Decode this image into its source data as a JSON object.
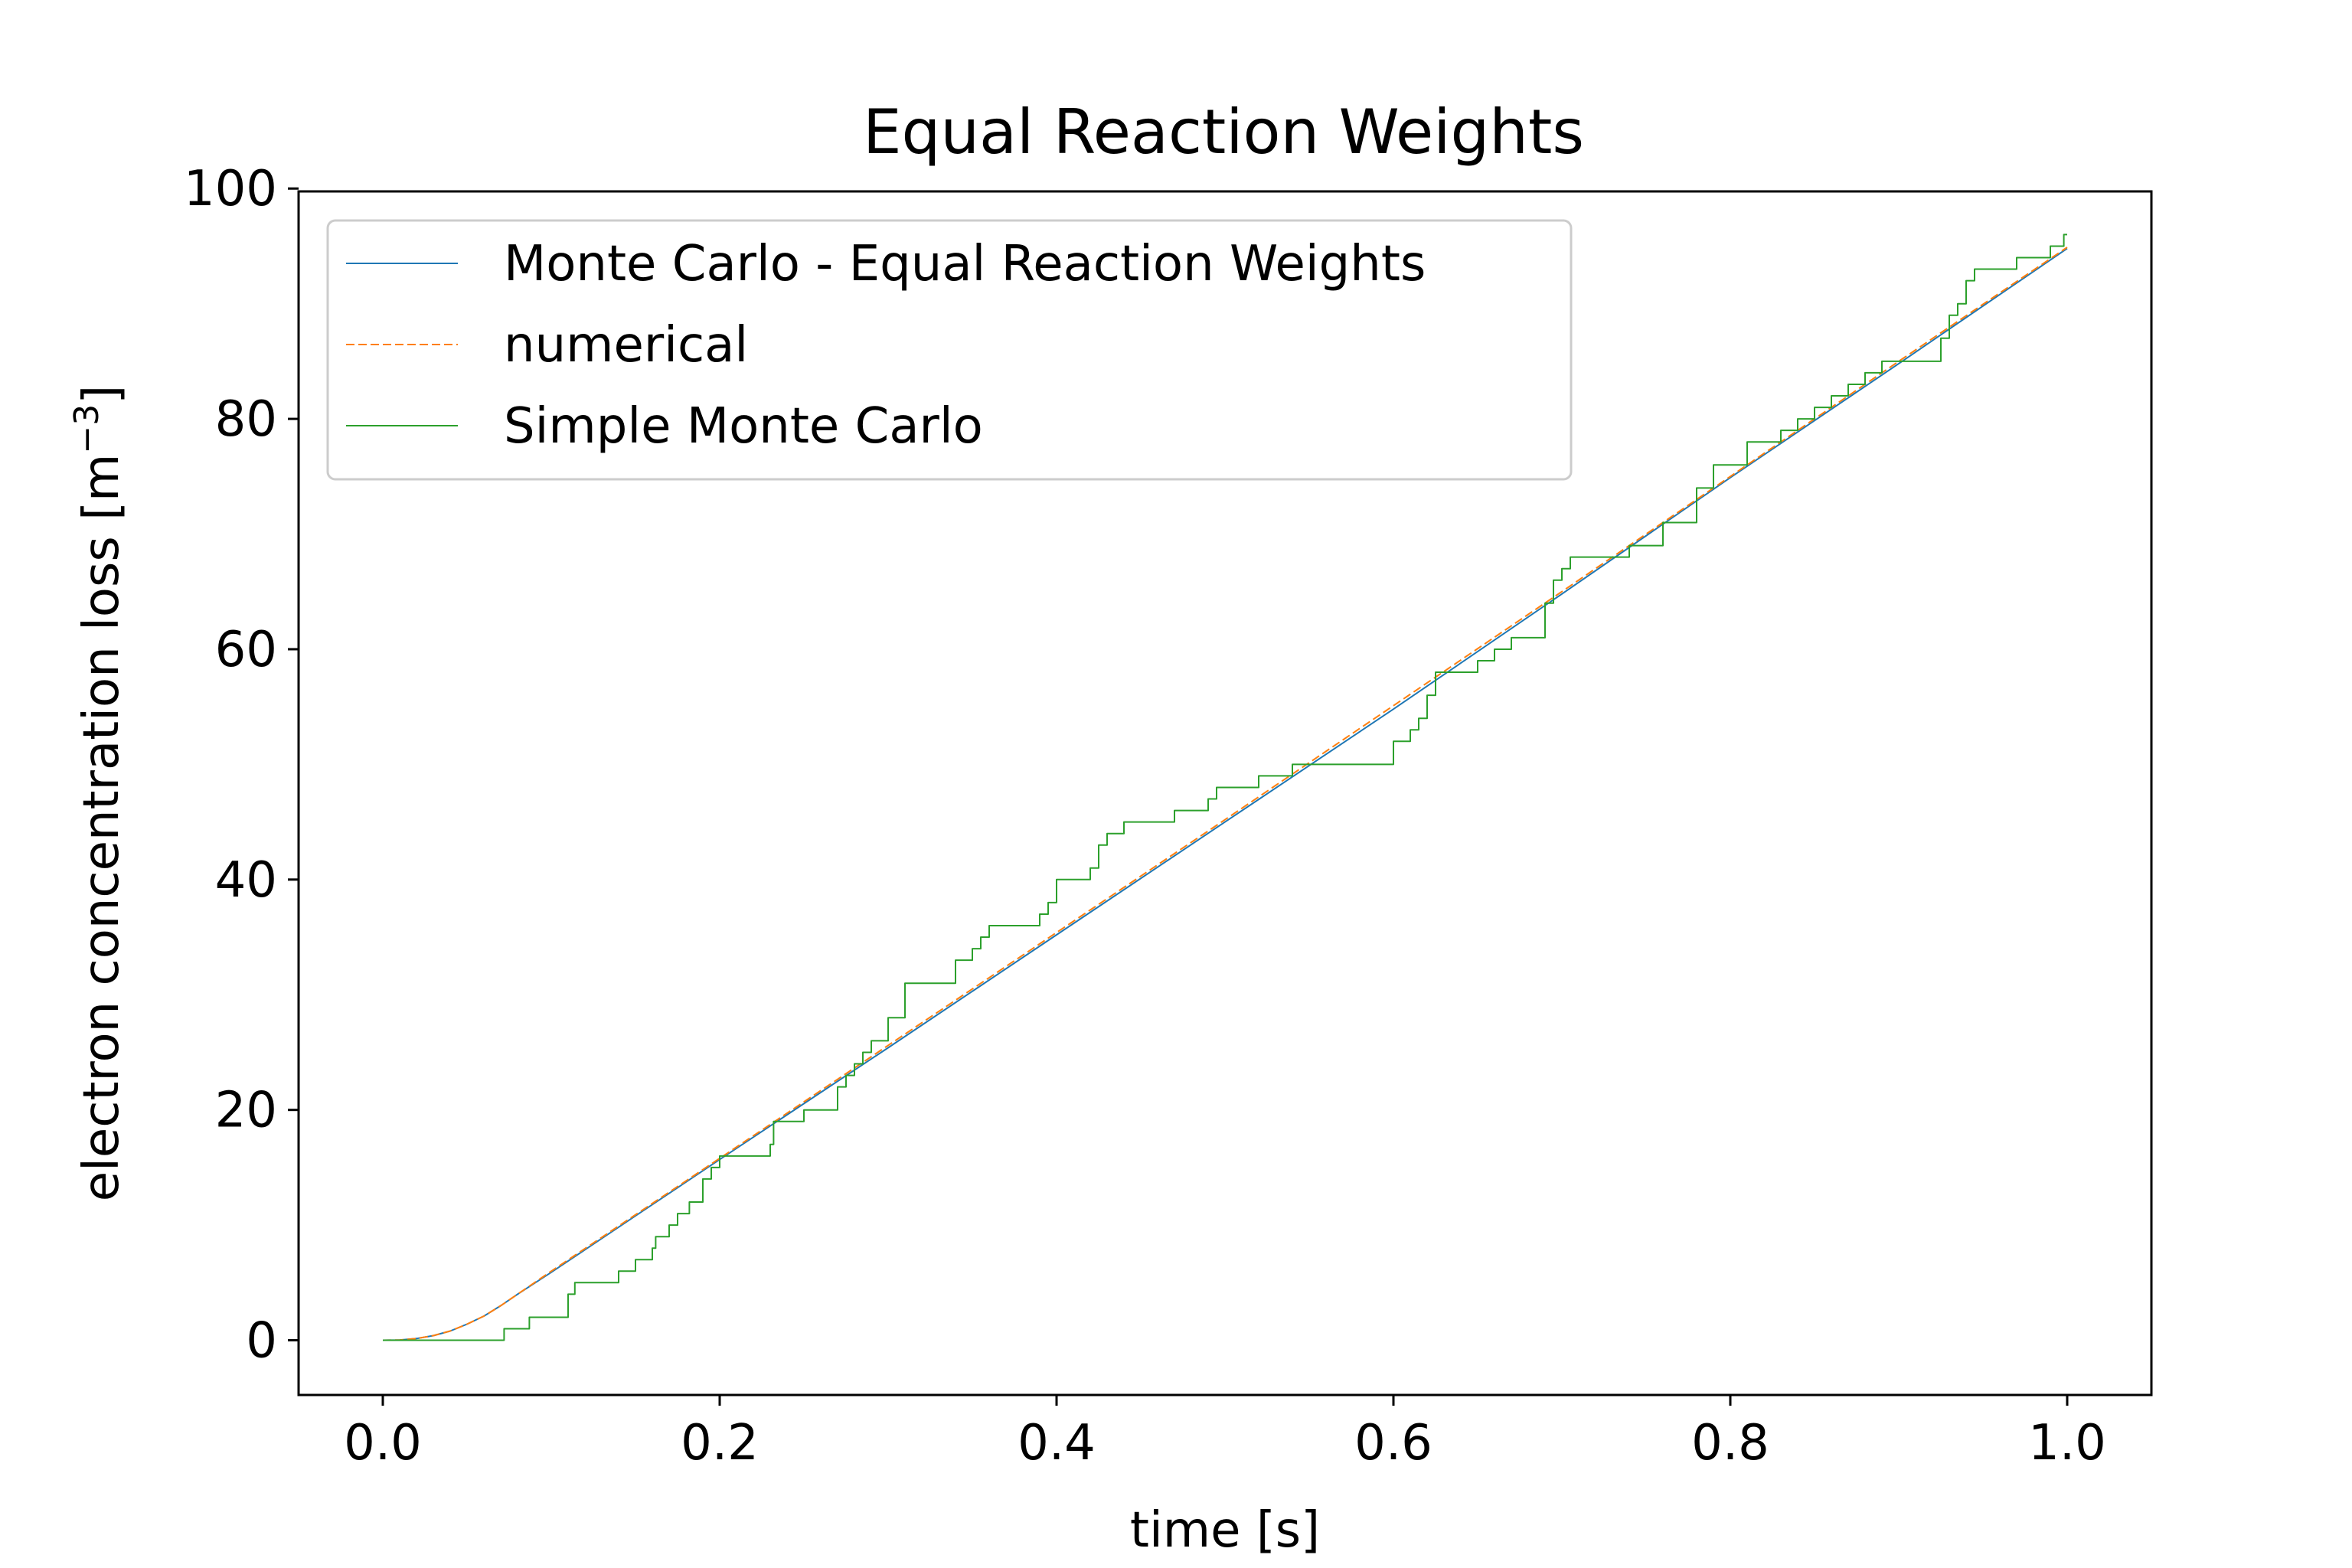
{
  "chart_data": {
    "type": "line",
    "title": "Equal Reaction Weights",
    "xlabel": "time [s]",
    "ylabel_main": "electron concentration loss [m",
    "ylabel_sup": "−3",
    "ylabel_close": "]",
    "xlim": [
      -0.05,
      1.05
    ],
    "ylim": [
      -4.75,
      99.75
    ],
    "xticks": [
      0.0,
      0.2,
      0.4,
      0.6,
      0.8,
      1.0
    ],
    "xtick_labels": [
      "0.0",
      "0.2",
      "0.4",
      "0.6",
      "0.8",
      "1.0"
    ],
    "yticks": [
      0,
      20,
      40,
      60,
      80,
      100
    ],
    "ytick_labels": [
      "0",
      "20",
      "40",
      "60",
      "80",
      "100"
    ],
    "grid": false,
    "legend_position": "upper-left",
    "series": [
      {
        "name": "Monte Carlo - Equal Reaction Weights",
        "color": "#1f77b4",
        "dash": "solid",
        "step": false,
        "x": [
          0.0,
          0.01,
          0.02,
          0.03,
          0.04,
          0.05,
          0.06,
          0.07,
          0.08,
          0.1,
          0.15,
          0.2,
          0.3,
          0.4,
          0.5,
          0.6,
          0.7,
          0.8,
          0.9,
          1.0
        ],
        "y": [
          0.0,
          0.02,
          0.15,
          0.4,
          0.8,
          1.4,
          2.1,
          3.0,
          4.0,
          5.9,
          10.8,
          15.7,
          25.4,
          35.2,
          45.0,
          54.8,
          64.8,
          74.9,
          84.8,
          94.8
        ]
      },
      {
        "name": "numerical",
        "color": "#ff7f0e",
        "dash": "dashed",
        "step": false,
        "x": [
          0.0,
          0.01,
          0.02,
          0.03,
          0.04,
          0.05,
          0.06,
          0.07,
          0.08,
          0.1,
          0.15,
          0.2,
          0.3,
          0.4,
          0.5,
          0.6,
          0.7,
          0.8,
          0.9,
          1.0
        ],
        "y": [
          0.0,
          0.02,
          0.15,
          0.4,
          0.8,
          1.4,
          2.1,
          3.0,
          4.0,
          6.0,
          10.9,
          15.8,
          25.6,
          35.4,
          45.2,
          55.1,
          65.0,
          75.0,
          85.0,
          94.9
        ]
      },
      {
        "name": "Simple Monte Carlo",
        "color": "#2ca02c",
        "dash": "solid",
        "step": true,
        "x": [
          0.0,
          0.072,
          0.087,
          0.11,
          0.114,
          0.14,
          0.15,
          0.16,
          0.162,
          0.17,
          0.175,
          0.182,
          0.19,
          0.195,
          0.2,
          0.23,
          0.232,
          0.25,
          0.27,
          0.275,
          0.28,
          0.285,
          0.29,
          0.3,
          0.31,
          0.313,
          0.34,
          0.35,
          0.355,
          0.36,
          0.365,
          0.39,
          0.395,
          0.4,
          0.42,
          0.425,
          0.43,
          0.44,
          0.455,
          0.47,
          0.49,
          0.495,
          0.5,
          0.52,
          0.54,
          0.57,
          0.6,
          0.61,
          0.615,
          0.62,
          0.625,
          0.65,
          0.66,
          0.67,
          0.69,
          0.695,
          0.7,
          0.705,
          0.71,
          0.74,
          0.76,
          0.78,
          0.79,
          0.8,
          0.81,
          0.83,
          0.84,
          0.85,
          0.86,
          0.87,
          0.875,
          0.88,
          0.89,
          0.9,
          0.925,
          0.93,
          0.935,
          0.94,
          0.945,
          0.96,
          0.97,
          0.99,
          0.998,
          1.0
        ],
        "y": [
          0,
          1,
          2,
          4,
          5,
          6,
          7,
          8,
          9,
          10,
          11,
          12,
          14,
          15,
          16,
          17,
          19,
          20,
          22,
          23,
          24,
          25,
          26,
          28,
          31,
          31,
          33,
          34,
          35,
          36,
          36,
          37,
          38,
          40,
          41,
          43,
          44,
          45,
          45,
          46,
          47,
          48,
          48,
          49,
          50,
          50,
          52,
          53,
          54,
          56,
          58,
          59,
          60,
          61,
          64,
          66,
          67,
          68,
          68,
          69,
          71,
          74,
          76,
          76,
          78,
          79,
          80,
          81,
          82,
          83,
          83,
          84,
          85,
          85,
          87,
          89,
          90,
          92,
          93,
          93,
          94,
          95,
          96,
          96
        ]
      }
    ]
  }
}
